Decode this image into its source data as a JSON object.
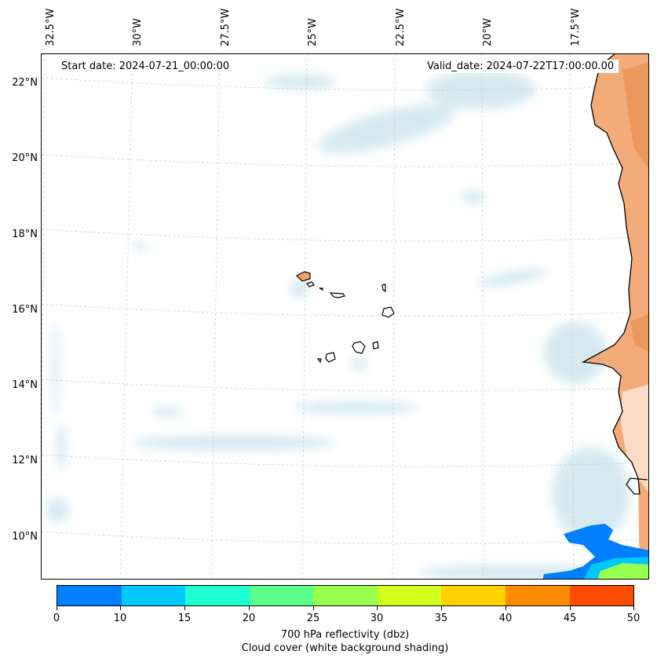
{
  "map": {
    "start_date": "Start date: 2024-07-21_00:00:00",
    "valid_date": "Valid_date: 2024-07-22T17:00:00.00",
    "longitude_labels": [
      "32.5°W",
      "30°W",
      "27.5°W",
      "25°W",
      "22.5°W",
      "20°W",
      "17.5°W"
    ],
    "latitude_labels": [
      "22°N",
      "20°N",
      "18°N",
      "16°N",
      "14°N",
      "12°N",
      "10°N"
    ],
    "land_color": "#f2a36a",
    "cloud_color": "#cfe6ee",
    "coastline_color": "#000000",
    "gridline_color": "#cccccc"
  },
  "colorbar": {
    "ticks": [
      "0",
      "10",
      "15",
      "20",
      "25",
      "30",
      "35",
      "40",
      "45",
      "50"
    ],
    "colors": [
      "#0080ff",
      "#00c8ff",
      "#1effd2",
      "#5aff8c",
      "#96ff50",
      "#d2ff1e",
      "#ffd200",
      "#ff8c00",
      "#ff4b00"
    ],
    "label": "700 hPa reflectivity (dbz)",
    "sublabel": "Cloud cover (white background shading)"
  }
}
